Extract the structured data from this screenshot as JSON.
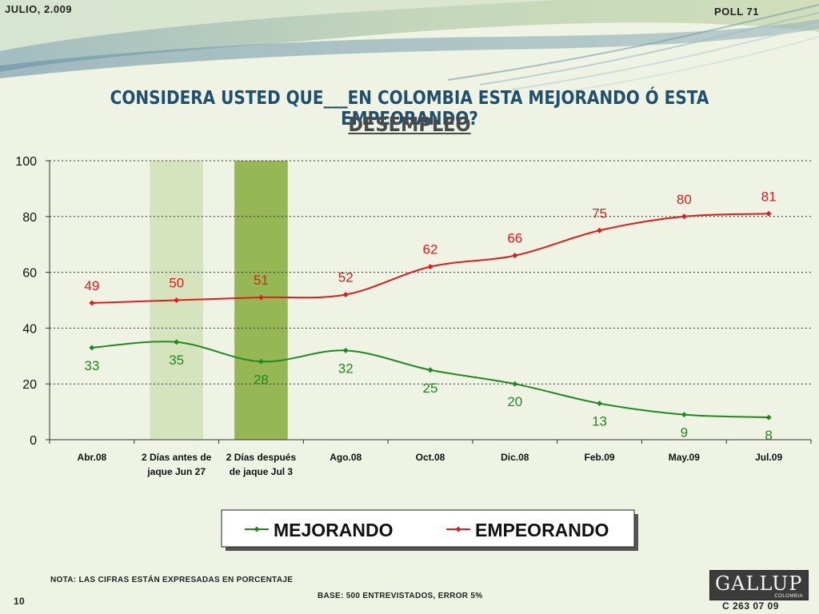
{
  "header": {
    "date": "JULIO, 2.009",
    "poll": "POLL 71"
  },
  "title": {
    "question": "CONSIDERA USTED QUE___EN COLOMBIA ESTA MEJORANDO Ó ESTA EMPEORANDO?",
    "topic": "DESEMPLEO"
  },
  "chart_data": {
    "type": "line",
    "categories": [
      [
        "Abr.08"
      ],
      [
        "2 Días antes de",
        "jaque Jun 27"
      ],
      [
        "2 Días después",
        "de jaque Jul 3"
      ],
      [
        "Ago.08"
      ],
      [
        "Oct.08"
      ],
      [
        "Dic.08"
      ],
      [
        "Feb.09"
      ],
      [
        "May.09"
      ],
      [
        "Jul.09"
      ]
    ],
    "series": [
      {
        "name": "MEJORANDO",
        "color": "#1e8a1e",
        "values": [
          33,
          35,
          28,
          32,
          25,
          20,
          13,
          9,
          8
        ]
      },
      {
        "name": "EMPEORANDO",
        "color": "#e01b1b",
        "values": [
          49,
          50,
          51,
          52,
          62,
          66,
          75,
          80,
          81
        ]
      }
    ],
    "highlight_bars": [
      {
        "category_index": 1,
        "value": 100,
        "color": "#d6e4bd"
      },
      {
        "category_index": 2,
        "value": 100,
        "color": "#95b854"
      }
    ],
    "ylim": [
      0,
      100
    ],
    "yticks": [
      0,
      20,
      40,
      60,
      80,
      100
    ],
    "grid": true,
    "legend": "bottom"
  },
  "footer": {
    "note": "NOTA: LAS CIFRAS ESTÁN EXPRESADAS EN PORCENTAJE",
    "base": "BASE: 500 ENTREVISTADOS, ERROR 5%",
    "page": "10",
    "code": "C 263 07 09",
    "logo_text": "GALLUP",
    "logo_sub": "COLOMBIA"
  }
}
